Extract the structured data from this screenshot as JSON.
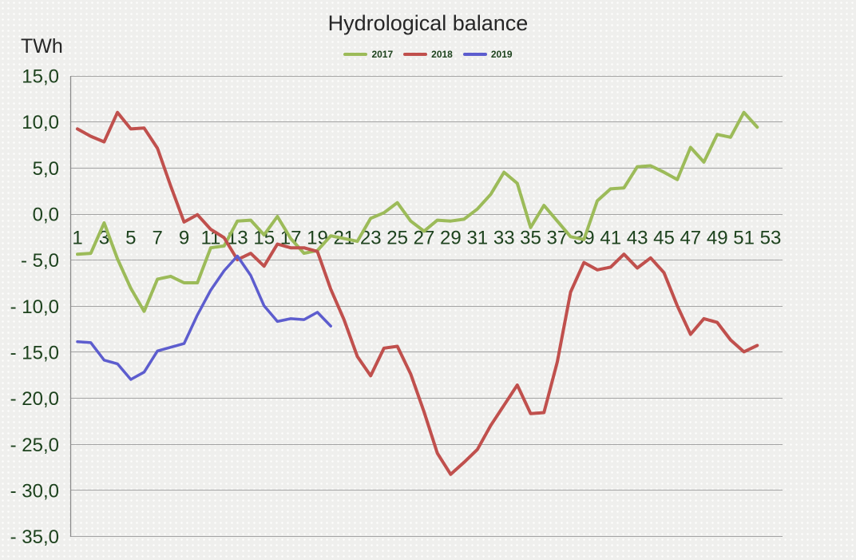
{
  "chart": {
    "title": "Hydrological balance",
    "y_unit": "TWh",
    "legend": [
      {
        "label": "2017",
        "color": "#9CBB59"
      },
      {
        "label": "2018",
        "color": "#C0504D"
      },
      {
        "label": "2019",
        "color": "#5D5DCE"
      }
    ]
  },
  "chart_data": {
    "type": "line",
    "title": "Hydrological balance",
    "ylabel": "TWh",
    "xlabel": "",
    "grid": true,
    "legend_position": "top",
    "ylim": [
      -35,
      15
    ],
    "ytick_step": 5,
    "y_tick_labels": [
      "15,0",
      "10,0",
      "5,0",
      "0,0",
      "- 5,0",
      "- 10,0",
      "- 15,0",
      "- 20,0",
      "- 25,0",
      "- 30,0",
      "- 35,0"
    ],
    "x_tick_labels": [
      "1",
      "3",
      "5",
      "7",
      "9",
      "11",
      "13",
      "15",
      "17",
      "19",
      "21",
      "23",
      "25",
      "27",
      "29",
      "31",
      "33",
      "35",
      "37",
      "39",
      "41",
      "43",
      "45",
      "47",
      "49",
      "51",
      "53"
    ],
    "x_weeks_range": [
      1,
      53
    ],
    "series": [
      {
        "name": "2017",
        "color": "#9CBB59",
        "start_week": 1,
        "values": [
          -4.4,
          -4.3,
          -1.0,
          -4.9,
          -8.1,
          -10.6,
          -7.1,
          -6.8,
          -7.5,
          -7.5,
          -3.7,
          -3.5,
          -0.8,
          -0.7,
          -2.3,
          -0.3,
          -2.7,
          -4.3,
          -4.0,
          -2.4,
          -2.7,
          -3.0,
          -0.5,
          0.1,
          1.2,
          -0.8,
          -1.9,
          -0.7,
          -0.8,
          -0.6,
          0.5,
          2.1,
          4.5,
          3.3,
          -1.5,
          0.9,
          -0.8,
          -2.5,
          -2.8,
          1.4,
          2.7,
          2.8,
          5.1,
          5.2,
          4.5,
          3.7,
          7.2,
          5.6,
          8.6,
          8.3,
          11.0,
          9.4
        ]
      },
      {
        "name": "2018",
        "color": "#C0504D",
        "start_week": 1,
        "values": [
          9.2,
          8.4,
          7.8,
          11.0,
          9.2,
          9.3,
          7.1,
          3.0,
          -0.9,
          -0.1,
          -1.7,
          -2.6,
          -5.0,
          -4.3,
          -5.7,
          -3.3,
          -3.7,
          -3.7,
          -4.1,
          -8.2,
          -11.5,
          -15.5,
          -17.6,
          -14.6,
          -14.4,
          -17.4,
          -21.5,
          -26.0,
          -28.3,
          -27.0,
          -25.6,
          -23.0,
          -20.8,
          -18.6,
          -21.7,
          -21.6,
          -16.1,
          -8.5,
          -5.3,
          -6.1,
          -5.8,
          -4.4,
          -5.9,
          -4.8,
          -6.4,
          -10.0,
          -13.1,
          -11.4,
          -11.8,
          -13.7,
          -15.0,
          -14.3
        ]
      },
      {
        "name": "2019",
        "color": "#5D5DCE",
        "start_week": 1,
        "values": [
          -13.9,
          -14.0,
          -15.9,
          -16.3,
          -18.0,
          -17.2,
          -14.9,
          -14.5,
          -14.1,
          -11.0,
          -8.3,
          -6.2,
          -4.6,
          -6.7,
          -10.0,
          -11.7,
          -11.4,
          -11.5,
          -10.7,
          -12.2
        ]
      }
    ]
  }
}
